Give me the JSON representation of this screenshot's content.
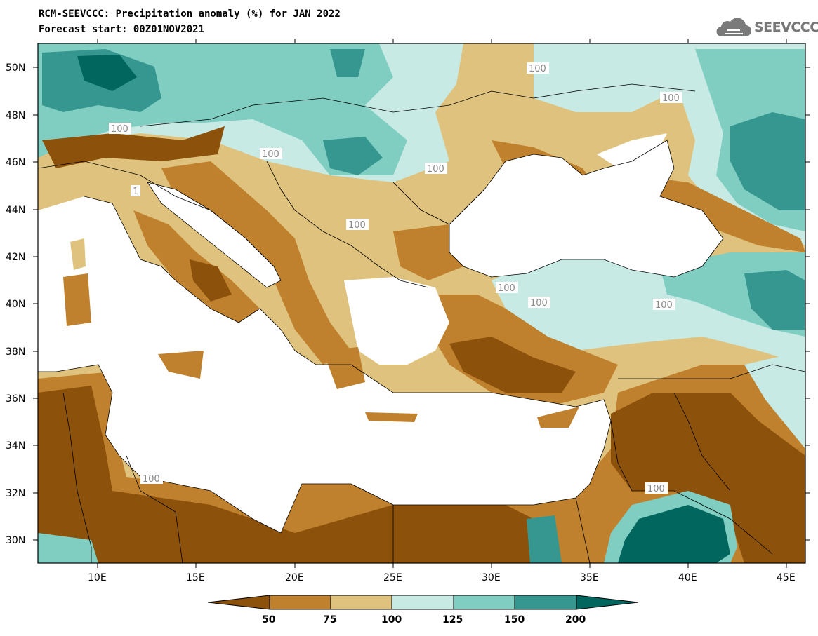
{
  "header": {
    "title_line1": "RCM-SEEVCCC: Precipitation anomaly (%) for JAN 2022",
    "title_line2": "Forecast start: 00Z01NOV2021",
    "logo_text": "SEEVCCC"
  },
  "axes": {
    "lat_labels": [
      "50N",
      "48N",
      "46N",
      "44N",
      "42N",
      "40N",
      "38N",
      "36N",
      "34N",
      "32N",
      "30N"
    ],
    "lon_labels": [
      "10E",
      "15E",
      "20E",
      "25E",
      "30E",
      "35E",
      "40E",
      "45E"
    ]
  },
  "contour_labels": [
    "100",
    "100",
    "100",
    "100",
    "100",
    "100",
    "100",
    "100",
    "100",
    "100",
    "100",
    "1"
  ],
  "colorbar": {
    "tick_labels": [
      "50",
      "75",
      "100",
      "125",
      "150",
      "200"
    ],
    "colors": [
      "#8c510a",
      "#bf812d",
      "#dfc27d",
      "#c7eae5",
      "#80cdc1",
      "#35978f",
      "#01665e"
    ]
  },
  "palette": {
    "sea": "#ffffff",
    "dry_strong": "#8c510a",
    "dry": "#bf812d",
    "dry_light": "#dfc27d",
    "wet_light": "#c7eae5",
    "wet": "#80cdc1",
    "wet_strong": "#35978f",
    "wet_extreme": "#01665e"
  }
}
